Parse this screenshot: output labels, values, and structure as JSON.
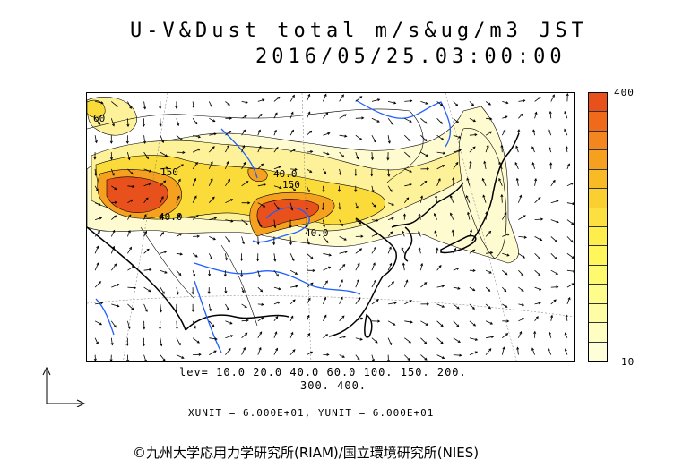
{
  "title": {
    "line1": "U-V&Dust total m/s&ug/m3 JST",
    "line2": "2016/05/25.03:00:00"
  },
  "colorbar": {
    "max_label": "400",
    "min_label": "10",
    "colors": [
      "#e8501c",
      "#f06a1c",
      "#f3861e",
      "#f6a020",
      "#f8bb26",
      "#fad030",
      "#fce040",
      "#fdee4c",
      "#fef65a",
      "#fefa70",
      "#fefc8a",
      "#fefda6",
      "#fefec2",
      "#fefed8"
    ]
  },
  "levels": {
    "line1": "lev= 10.0 20.0 40.0 60.0 100. 150. 200.",
    "line2": "300. 400."
  },
  "units": "XUNIT = 6.000E+01, YUNIT = 6.000E+01",
  "copyright": "©九州大学応用力学研究所(RIAM)/国立環境研究所(NIES)",
  "map_labels": {
    "c150a": "150",
    "c150b": "150",
    "c40a": "40.0",
    "c40b": "40.0",
    "c40c": "40.0",
    "c60": "60"
  },
  "palette": {
    "outer": "#fefbd0",
    "light": "#fdf29a",
    "mid": "#fbdb3a",
    "orange": "#f6a020",
    "red": "#e8501c",
    "coast": "#000000",
    "river": "#1f5fff"
  }
}
